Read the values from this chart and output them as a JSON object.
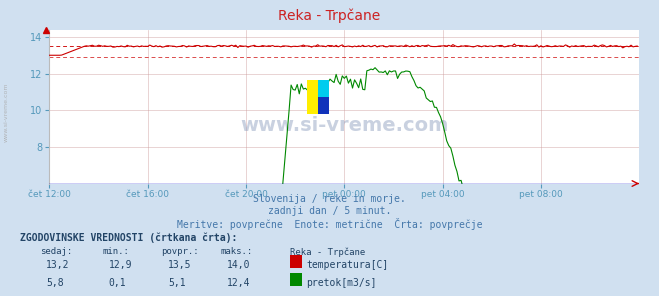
{
  "title": "Reka - Trpčane",
  "background_color": "#d0e0f0",
  "plot_bg_color": "#ffffff",
  "subtitle_lines": [
    "Slovenija / reke in morje.",
    "zadnji dan / 5 minut.",
    "Meritve: povprečne  Enote: metrične  Črta: povprečje"
  ],
  "watermark": "www.si-vreme.com",
  "xlabel_ticks": [
    "čet 12:00",
    "čet 16:00",
    "čet 20:00",
    "pet 00:00",
    "pet 04:00",
    "pet 08:00"
  ],
  "xlabel_tick_positions": [
    0,
    48,
    96,
    144,
    192,
    240
  ],
  "total_points": 288,
  "ylim": [
    6,
    14.4
  ],
  "yticks": [
    8,
    10,
    12,
    14
  ],
  "temp_color": "#cc0000",
  "flow_color": "#008800",
  "temp_avg": 13.5,
  "temp_min": 12.9,
  "temp_max": 14.0,
  "temp_current": 13.2,
  "flow_avg": 5.1,
  "flow_min": 0.1,
  "flow_max": 12.4,
  "flow_current": 5.8,
  "flow_scale_min": 0.0,
  "flow_scale_max": 14.4,
  "table_header": "ZGODOVINSKE VREDNOSTI (črtkana črta):",
  "table_cols": [
    "sedaj:",
    "min.:",
    "povpr.:",
    "maks.:",
    "Reka - Trpčane"
  ],
  "legend_items": [
    {
      "color": "#cc0000",
      "label": "temperatura[C]"
    },
    {
      "color": "#008800",
      "label": "pretok[m3/s]"
    }
  ],
  "sidebar_text": "www.si-vreme.com",
  "axis_label_color": "#5599bb",
  "grid_color": "#ddbbbb",
  "hline_temp_avg_color": "#cc0000",
  "hline_temp_min_color": "#cc0000",
  "hline_flow_avg_color": "#008800",
  "xaxis_arrow_color": "#cc0000"
}
